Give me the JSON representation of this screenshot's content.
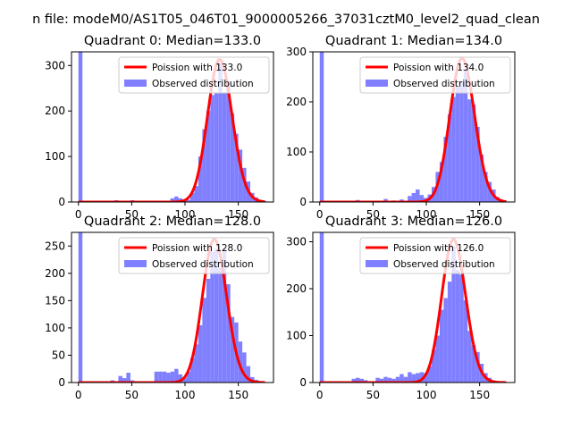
{
  "figure": {
    "suptitle": "n file: modeM0/AS1T05_046T01_9000005266_37031cztM0_level2_quad_clean"
  },
  "chart_data": [
    {
      "type": "bar",
      "title": "Quadrant 0: Median=133.0",
      "xlabel": "",
      "ylabel": "",
      "xlim": [
        -6.5,
        183
      ],
      "ylim": [
        0,
        330
      ],
      "xticks": [
        0,
        50,
        100,
        150
      ],
      "yticks": [
        0,
        100,
        200,
        300
      ],
      "bin_width": 3.75,
      "legend": [
        "Poission with 133.0",
        "Observed distribution"
      ],
      "legend_loc": "upper right",
      "poisson_mean": 133.0,
      "poisson_peak": 313,
      "hist": [
        {
          "x": 0,
          "y": 330
        },
        {
          "x": 3.75,
          "y": 2
        },
        {
          "x": 30,
          "y": 2
        },
        {
          "x": 33.75,
          "y": 4
        },
        {
          "x": 48.75,
          "y": 4
        },
        {
          "x": 75,
          "y": 3
        },
        {
          "x": 86.25,
          "y": 8
        },
        {
          "x": 90,
          "y": 12
        },
        {
          "x": 93.75,
          "y": 8
        },
        {
          "x": 97.5,
          "y": 2
        },
        {
          "x": 101.25,
          "y": 5
        },
        {
          "x": 105,
          "y": 20
        },
        {
          "x": 108.75,
          "y": 35
        },
        {
          "x": 112.5,
          "y": 100
        },
        {
          "x": 116.25,
          "y": 160
        },
        {
          "x": 120,
          "y": 200
        },
        {
          "x": 123.75,
          "y": 235
        },
        {
          "x": 127.5,
          "y": 240
        },
        {
          "x": 131.25,
          "y": 305
        },
        {
          "x": 135,
          "y": 240
        },
        {
          "x": 138.75,
          "y": 265
        },
        {
          "x": 142.5,
          "y": 195
        },
        {
          "x": 146.25,
          "y": 150
        },
        {
          "x": 150,
          "y": 115
        },
        {
          "x": 153.75,
          "y": 75
        },
        {
          "x": 157.5,
          "y": 45
        },
        {
          "x": 161.25,
          "y": 20
        },
        {
          "x": 165,
          "y": 10
        },
        {
          "x": 168.75,
          "y": 4
        },
        {
          "x": 172.5,
          "y": 2
        }
      ]
    },
    {
      "type": "bar",
      "title": "Quadrant 1: Median=134.0",
      "xlabel": "",
      "ylabel": "",
      "xlim": [
        -6.5,
        183
      ],
      "ylim": [
        0,
        300
      ],
      "xticks": [
        0,
        50,
        100,
        150
      ],
      "yticks": [
        0,
        100,
        200,
        300
      ],
      "bin_width": 3.75,
      "legend": [
        "Poission with 134.0",
        "Observed distribution"
      ],
      "legend_loc": "upper right",
      "poisson_mean": 134.0,
      "poisson_peak": 287,
      "hist": [
        {
          "x": 0,
          "y": 300
        },
        {
          "x": 3.75,
          "y": 2
        },
        {
          "x": 30,
          "y": 2
        },
        {
          "x": 33.75,
          "y": 4
        },
        {
          "x": 60,
          "y": 6
        },
        {
          "x": 67.5,
          "y": 3
        },
        {
          "x": 75,
          "y": 5
        },
        {
          "x": 82.5,
          "y": 12
        },
        {
          "x": 86.25,
          "y": 18
        },
        {
          "x": 90,
          "y": 25
        },
        {
          "x": 93.75,
          "y": 14
        },
        {
          "x": 97.5,
          "y": 8
        },
        {
          "x": 101.25,
          "y": 15
        },
        {
          "x": 105,
          "y": 30
        },
        {
          "x": 108.75,
          "y": 60
        },
        {
          "x": 112.5,
          "y": 80
        },
        {
          "x": 116.25,
          "y": 130
        },
        {
          "x": 120,
          "y": 175
        },
        {
          "x": 123.75,
          "y": 210
        },
        {
          "x": 127.5,
          "y": 230
        },
        {
          "x": 131.25,
          "y": 240
        },
        {
          "x": 135,
          "y": 265
        },
        {
          "x": 138.75,
          "y": 205
        },
        {
          "x": 142.5,
          "y": 195
        },
        {
          "x": 146.25,
          "y": 150
        },
        {
          "x": 150,
          "y": 95
        },
        {
          "x": 153.75,
          "y": 60
        },
        {
          "x": 157.5,
          "y": 40
        },
        {
          "x": 161.25,
          "y": 25
        },
        {
          "x": 165,
          "y": 10
        },
        {
          "x": 168.75,
          "y": 3
        }
      ]
    },
    {
      "type": "bar",
      "title": "Quadrant 2: Median=128.0",
      "xlabel": "",
      "ylabel": "",
      "xlim": [
        -6.5,
        183
      ],
      "ylim": [
        0,
        275
      ],
      "xticks": [
        0,
        50,
        100,
        150
      ],
      "yticks": [
        0,
        50,
        100,
        150,
        200,
        250
      ],
      "bin_width": 3.75,
      "legend": [
        "Poission with 128.0",
        "Observed distribution"
      ],
      "legend_loc": "upper right",
      "poisson_mean": 128.0,
      "poisson_peak": 262,
      "hist": [
        {
          "x": 0,
          "y": 275
        },
        {
          "x": 3.75,
          "y": 2
        },
        {
          "x": 30,
          "y": 4
        },
        {
          "x": 37.5,
          "y": 12
        },
        {
          "x": 41.25,
          "y": 8
        },
        {
          "x": 45,
          "y": 18
        },
        {
          "x": 48.75,
          "y": 4
        },
        {
          "x": 71.25,
          "y": 20
        },
        {
          "x": 75,
          "y": 20
        },
        {
          "x": 78.75,
          "y": 20
        },
        {
          "x": 82.5,
          "y": 18
        },
        {
          "x": 86.25,
          "y": 20
        },
        {
          "x": 90,
          "y": 25
        },
        {
          "x": 93.75,
          "y": 15
        },
        {
          "x": 97.5,
          "y": 8
        },
        {
          "x": 101.25,
          "y": 20
        },
        {
          "x": 105,
          "y": 45
        },
        {
          "x": 108.75,
          "y": 70
        },
        {
          "x": 112.5,
          "y": 105
        },
        {
          "x": 116.25,
          "y": 155
        },
        {
          "x": 120,
          "y": 190
        },
        {
          "x": 123.75,
          "y": 240
        },
        {
          "x": 127.5,
          "y": 245
        },
        {
          "x": 131.25,
          "y": 210
        },
        {
          "x": 135,
          "y": 245
        },
        {
          "x": 138.75,
          "y": 180
        },
        {
          "x": 142.5,
          "y": 120
        },
        {
          "x": 146.25,
          "y": 110
        },
        {
          "x": 150,
          "y": 75
        },
        {
          "x": 153.75,
          "y": 55
        },
        {
          "x": 157.5,
          "y": 30
        },
        {
          "x": 161.25,
          "y": 10
        },
        {
          "x": 165,
          "y": 5
        },
        {
          "x": 168.75,
          "y": 2
        }
      ]
    },
    {
      "type": "bar",
      "title": "Quadrant 3: Median=126.0",
      "xlabel": "",
      "ylabel": "",
      "xlim": [
        -6.5,
        183
      ],
      "ylim": [
        0,
        320
      ],
      "xticks": [
        0,
        50,
        100,
        150
      ],
      "yticks": [
        0,
        100,
        200,
        300
      ],
      "bin_width": 3.75,
      "legend": [
        "Poission with 126.0",
        "Observed distribution"
      ],
      "legend_loc": "upper right",
      "poisson_mean": 126.0,
      "poisson_peak": 305,
      "hist": [
        {
          "x": 0,
          "y": 320
        },
        {
          "x": 3.75,
          "y": 2
        },
        {
          "x": 30,
          "y": 8
        },
        {
          "x": 33.75,
          "y": 10
        },
        {
          "x": 37.5,
          "y": 8
        },
        {
          "x": 41.25,
          "y": 5
        },
        {
          "x": 52.5,
          "y": 10
        },
        {
          "x": 56.25,
          "y": 8
        },
        {
          "x": 60,
          "y": 12
        },
        {
          "x": 63.75,
          "y": 10
        },
        {
          "x": 67.5,
          "y": 8
        },
        {
          "x": 71.25,
          "y": 12
        },
        {
          "x": 75,
          "y": 18
        },
        {
          "x": 78.75,
          "y": 12
        },
        {
          "x": 82.5,
          "y": 22
        },
        {
          "x": 86.25,
          "y": 18
        },
        {
          "x": 90,
          "y": 20
        },
        {
          "x": 93.75,
          "y": 22
        },
        {
          "x": 97.5,
          "y": 20
        },
        {
          "x": 101.25,
          "y": 35
        },
        {
          "x": 105,
          "y": 70
        },
        {
          "x": 108.75,
          "y": 100
        },
        {
          "x": 112.5,
          "y": 155
        },
        {
          "x": 116.25,
          "y": 180
        },
        {
          "x": 120,
          "y": 215
        },
        {
          "x": 123.75,
          "y": 290
        },
        {
          "x": 127.5,
          "y": 240
        },
        {
          "x": 131.25,
          "y": 230
        },
        {
          "x": 135,
          "y": 175
        },
        {
          "x": 138.75,
          "y": 110
        },
        {
          "x": 142.5,
          "y": 80
        },
        {
          "x": 146.25,
          "y": 65
        },
        {
          "x": 150,
          "y": 40
        },
        {
          "x": 153.75,
          "y": 20
        },
        {
          "x": 157.5,
          "y": 10
        },
        {
          "x": 161.25,
          "y": 4
        },
        {
          "x": 165,
          "y": 2
        }
      ]
    }
  ],
  "colors": {
    "hist_fill": "#7f7fff",
    "poisson_line": "#ff0000",
    "legend_border": "#cccccc"
  }
}
